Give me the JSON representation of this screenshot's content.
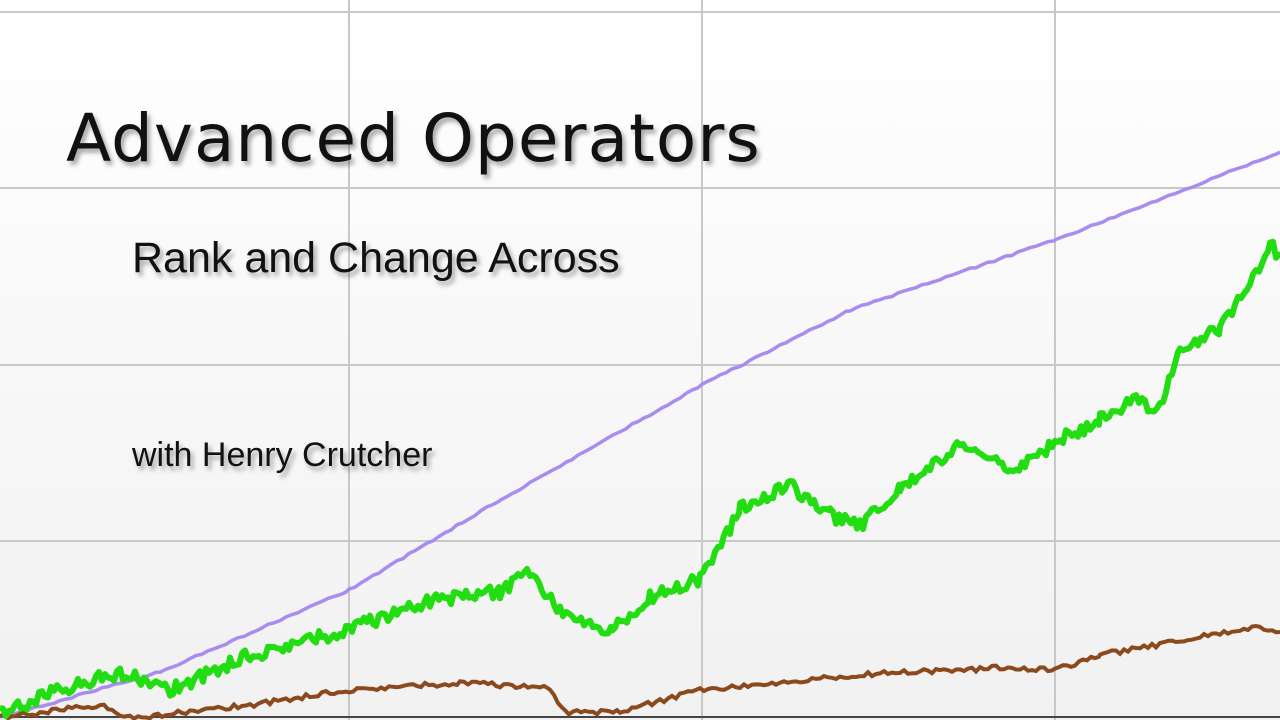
{
  "title": "Advanced Operators",
  "subtitle": "Rank and Change Across",
  "presenter": "with Henry Crutcher"
}
